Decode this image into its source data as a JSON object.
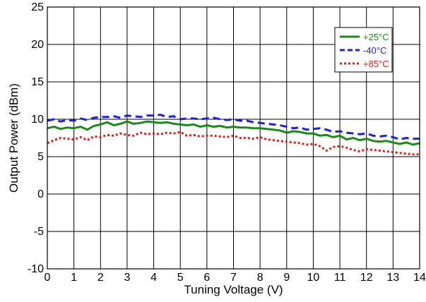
{
  "chart_data": {
    "type": "line",
    "title": "",
    "xlabel": "Tuning Voltage (V)",
    "ylabel": "Output Power (dBm)",
    "xlim": [
      0,
      14
    ],
    "ylim": [
      -10,
      25
    ],
    "xticks": [
      "0",
      "1",
      "2",
      "3",
      "4",
      "5",
      "6",
      "7",
      "8",
      "9",
      "10",
      "11",
      "12",
      "13",
      "14"
    ],
    "yticks": [
      "-10",
      "-5",
      "0",
      "5",
      "10",
      "15",
      "20",
      "25"
    ],
    "grid": true,
    "legend_position": "top-right",
    "x": [
      0,
      0.25,
      0.5,
      0.75,
      1,
      1.25,
      1.5,
      1.75,
      2,
      2.25,
      2.5,
      2.75,
      3,
      3.25,
      3.5,
      3.75,
      4,
      4.25,
      4.5,
      4.75,
      5,
      5.25,
      5.5,
      5.75,
      6,
      6.25,
      6.5,
      6.75,
      7,
      7.25,
      7.5,
      7.75,
      8,
      8.25,
      8.5,
      8.75,
      9,
      9.25,
      9.5,
      9.75,
      10,
      10.25,
      10.5,
      10.75,
      11,
      11.25,
      11.5,
      11.75,
      12,
      12.25,
      12.5,
      12.75,
      13,
      13.25,
      13.5,
      13.75,
      14
    ],
    "series": [
      {
        "name": "+25°C",
        "color": "#1a8a1a",
        "style": "solid",
        "values": [
          8.8,
          9.0,
          8.7,
          8.9,
          8.8,
          9.0,
          8.6,
          9.1,
          9.3,
          9.6,
          9.2,
          9.4,
          9.7,
          9.4,
          9.5,
          9.7,
          9.6,
          9.5,
          9.6,
          9.4,
          9.3,
          9.2,
          9.3,
          9.0,
          9.2,
          9.0,
          9.1,
          8.9,
          9.0,
          8.9,
          8.9,
          8.8,
          8.8,
          8.7,
          8.6,
          8.5,
          8.2,
          8.4,
          8.3,
          8.1,
          8.1,
          7.8,
          7.9,
          7.6,
          7.8,
          7.3,
          7.5,
          7.2,
          7.4,
          7.1,
          7.0,
          7.1,
          6.9,
          6.7,
          6.9,
          6.6,
          6.8
        ]
      },
      {
        "name": "-40°C",
        "color": "#1f1fe0",
        "style": "dashed",
        "values": [
          9.8,
          10.0,
          9.7,
          9.9,
          9.8,
          10.1,
          9.9,
          10.2,
          10.3,
          10.3,
          10.4,
          10.2,
          10.5,
          10.4,
          10.3,
          10.5,
          10.5,
          10.6,
          10.3,
          10.4,
          10.0,
          10.1,
          10.1,
          10.0,
          10.1,
          10.2,
          10.0,
          9.9,
          10.0,
          9.8,
          9.8,
          9.6,
          9.5,
          9.4,
          9.3,
          9.2,
          9.0,
          8.8,
          8.9,
          8.6,
          8.7,
          8.8,
          8.6,
          8.3,
          8.4,
          8.2,
          8.1,
          8.0,
          8.1,
          7.8,
          7.7,
          7.8,
          7.6,
          7.3,
          7.5,
          7.4,
          7.4
        ]
      },
      {
        "name": "+85°C",
        "color": "#e01e1e",
        "style": "dotted",
        "values": [
          6.8,
          7.2,
          7.5,
          7.4,
          7.3,
          7.6,
          7.2,
          7.7,
          7.6,
          7.9,
          7.8,
          8.1,
          7.9,
          7.8,
          8.2,
          8.0,
          8.1,
          8.0,
          8.2,
          8.1,
          8.3,
          7.8,
          7.9,
          7.7,
          7.8,
          7.8,
          7.7,
          7.6,
          7.8,
          7.5,
          7.5,
          7.4,
          7.6,
          7.3,
          7.2,
          7.1,
          7.0,
          6.9,
          6.8,
          6.6,
          6.7,
          6.4,
          5.8,
          6.3,
          6.4,
          6.2,
          5.9,
          5.7,
          6.0,
          5.9,
          5.8,
          5.7,
          5.6,
          5.5,
          5.4,
          5.3,
          5.3
        ]
      }
    ]
  }
}
